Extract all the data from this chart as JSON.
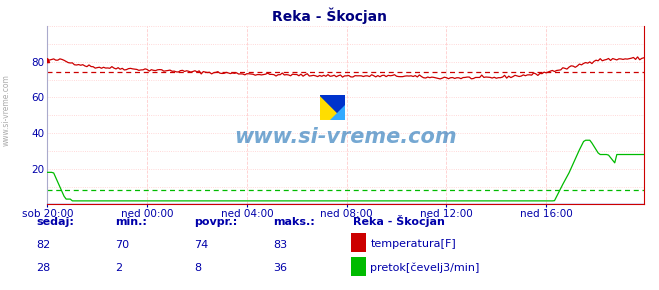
{
  "title": "Reka - Škocjan",
  "title_color": "#000080",
  "bg_color": "#ffffff",
  "grid_color_h": "#ffcccc",
  "grid_color_v": "#ffcccc",
  "grid_dot_color": "#ffaaaa",
  "xlim": [
    0,
    287
  ],
  "ylim": [
    0,
    100
  ],
  "yticks": [
    20,
    40,
    60,
    80
  ],
  "xtick_labels": [
    "sob 20:00",
    "ned 00:00",
    "ned 04:00",
    "ned 08:00",
    "ned 12:00",
    "ned 16:00"
  ],
  "xtick_positions": [
    0,
    48,
    96,
    144,
    192,
    240
  ],
  "temp_color": "#cc0000",
  "flow_color": "#00bb00",
  "height_color": "#0000cc",
  "avg_temp": 74,
  "avg_flow": 8,
  "watermark": "www.si-vreme.com",
  "legend_title_text": "Reka - Škocjan",
  "stats": {
    "temp": {
      "sedaj": 82,
      "min": 70,
      "povpr": 74,
      "maks": 83
    },
    "flow": {
      "sedaj": 28,
      "min": 2,
      "povpr": 8,
      "maks": 36
    }
  },
  "sidebar_text": "www.si-vreme.com"
}
